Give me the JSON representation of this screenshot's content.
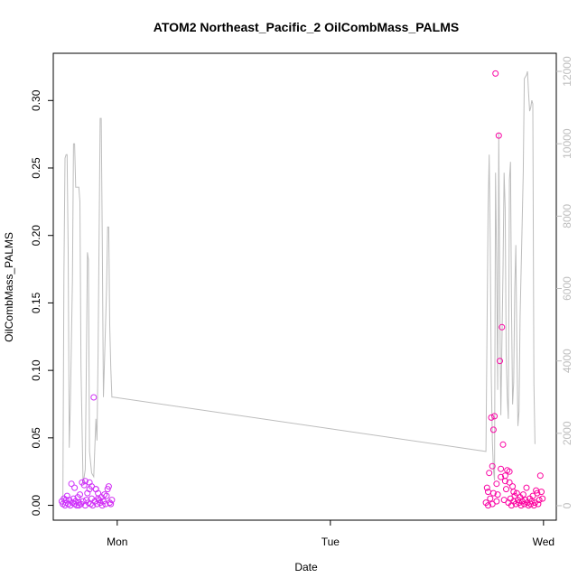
{
  "chart_data": {
    "type": "scatter",
    "title": "ATOM2 Northeast_Pacific_2 OilCombMass_PALMS",
    "xlabel": "Date",
    "ylabel": "OilCombMass_PALMS",
    "x_tick_labels": [
      "Mon",
      "Tue",
      "Wed"
    ],
    "x_tick_values": [
      0,
      1,
      2
    ],
    "x_range": [
      -0.3,
      2.06
    ],
    "y_ticks": [
      "0.00",
      "0.05",
      "0.10",
      "0.15",
      "0.20",
      "0.25",
      "0.30"
    ],
    "y_tick_values": [
      0,
      0.05,
      0.1,
      0.15,
      0.2,
      0.25,
      0.3
    ],
    "ylim": [
      -0.011,
      0.335
    ],
    "y2_ticks": [
      "0",
      "2000",
      "4000",
      "6000",
      "8000",
      "10000",
      "12000"
    ],
    "y2_tick_values": [
      0,
      2000,
      4000,
      6000,
      8000,
      10000,
      12000
    ],
    "y2lim": [
      -400,
      12500
    ],
    "grid": false,
    "series": [
      {
        "role": "points",
        "color_start": "#cc33ff",
        "color_end": "#ff0099",
        "points": [
          [
            -0.26,
            0.003
          ],
          [
            -0.255,
            0.001
          ],
          [
            -0.25,
            0.005
          ],
          [
            -0.245,
            0.0
          ],
          [
            -0.24,
            0.002
          ],
          [
            -0.235,
            0.007
          ],
          [
            -0.23,
            0.001
          ],
          [
            -0.225,
            0.004
          ],
          [
            -0.22,
            0.0
          ],
          [
            -0.215,
            0.016
          ],
          [
            -0.21,
            0.002
          ],
          [
            -0.205,
            0.005
          ],
          [
            -0.2,
            0.001
          ],
          [
            -0.195,
            0.003
          ],
          [
            -0.19,
            0.0
          ],
          [
            -0.185,
            0.006
          ],
          [
            -0.18,
            0.002
          ],
          [
            -0.175,
            0.008
          ],
          [
            -0.17,
            0.001
          ],
          [
            -0.165,
            0.017
          ],
          [
            -0.16,
            0.003
          ],
          [
            -0.155,
            0.015
          ],
          [
            -0.15,
            0.0
          ],
          [
            -0.145,
            0.004
          ],
          [
            -0.14,
            0.009
          ],
          [
            -0.135,
            0.002
          ],
          [
            -0.13,
            0.017
          ],
          [
            -0.125,
            0.001
          ],
          [
            -0.12,
            0.005
          ],
          [
            -0.115,
            0.0
          ],
          [
            -0.11,
            0.08
          ],
          [
            -0.105,
            0.003
          ],
          [
            -0.1,
            0.012
          ],
          [
            -0.095,
            0.001
          ],
          [
            -0.09,
            0.009
          ],
          [
            -0.085,
            0.004
          ],
          [
            -0.08,
            0.002
          ],
          [
            -0.075,
            0.006
          ],
          [
            -0.07,
            0.0
          ],
          [
            -0.065,
            0.003
          ],
          [
            -0.06,
            0.008
          ],
          [
            -0.055,
            0.001
          ],
          [
            -0.05,
            0.007
          ],
          [
            -0.045,
            0.012
          ],
          [
            -0.04,
            0.014
          ],
          [
            -0.035,
            0.002
          ],
          [
            -0.03,
            0.001
          ],
          [
            -0.025,
            0.004
          ],
          [
            -0.1,
            0.012
          ],
          [
            -0.12,
            0.014
          ],
          [
            -0.15,
            0.018
          ],
          [
            -0.2,
            0.013
          ],
          [
            -0.13,
            0.012
          ],
          [
            -0.09,
            0.005
          ],
          [
            -0.24,
            0.004
          ],
          [
            -0.18,
            0.0
          ],
          [
            1.73,
            0.002
          ],
          [
            1.735,
            0.013
          ],
          [
            1.74,
            0.0
          ],
          [
            1.745,
            0.024
          ],
          [
            1.75,
            0.005
          ],
          [
            1.755,
            0.065
          ],
          [
            1.76,
            0.001
          ],
          [
            1.765,
            0.056
          ],
          [
            1.77,
            0.066
          ],
          [
            1.775,
            0.32
          ],
          [
            1.78,
            0.003
          ],
          [
            1.785,
            0.008
          ],
          [
            1.79,
            0.274
          ],
          [
            1.795,
            0.107
          ],
          [
            1.8,
            0.027
          ],
          [
            1.805,
            0.132
          ],
          [
            1.81,
            0.045
          ],
          [
            1.815,
            0.004
          ],
          [
            1.82,
            0.022
          ],
          [
            1.825,
            0.012
          ],
          [
            1.83,
            0.026
          ],
          [
            1.835,
            0.002
          ],
          [
            1.84,
            0.017
          ],
          [
            1.845,
            0.005
          ],
          [
            1.85,
            0.0
          ],
          [
            1.855,
            0.014
          ],
          [
            1.86,
            0.003
          ],
          [
            1.865,
            0.007
          ],
          [
            1.87,
            0.001
          ],
          [
            1.875,
            0.009
          ],
          [
            1.88,
            0.004
          ],
          [
            1.885,
            0.002
          ],
          [
            1.89,
            0.006
          ],
          [
            1.895,
            0.0
          ],
          [
            1.9,
            0.003
          ],
          [
            1.905,
            0.008
          ],
          [
            1.91,
            0.001
          ],
          [
            1.915,
            0.004
          ],
          [
            1.92,
            0.013
          ],
          [
            1.925,
            0.002
          ],
          [
            1.93,
            0.0
          ],
          [
            1.935,
            0.005
          ],
          [
            1.94,
            0.001
          ],
          [
            1.945,
            0.003
          ],
          [
            1.95,
            0.007
          ],
          [
            1.955,
            0.0
          ],
          [
            1.96,
            0.002
          ],
          [
            1.965,
            0.011
          ],
          [
            1.97,
            0.009
          ],
          [
            1.975,
            0.001
          ],
          [
            1.98,
            0.004
          ],
          [
            1.985,
            0.022
          ],
          [
            1.99,
            0.01
          ],
          [
            1.995,
            0.005
          ],
          [
            1.76,
            0.029
          ],
          [
            1.765,
            0.009
          ],
          [
            1.8,
            0.021
          ],
          [
            1.82,
            0.018
          ],
          [
            1.84,
            0.025
          ],
          [
            1.86,
            0.01
          ],
          [
            1.78,
            0.016
          ],
          [
            1.74,
            0.01
          ]
        ]
      },
      {
        "role": "right-axis line",
        "color": "#bdbdbd",
        "points": [
          [
            -0.255,
            0
          ],
          [
            -0.25,
            6400
          ],
          [
            -0.245,
            9600
          ],
          [
            -0.24,
            9700
          ],
          [
            -0.235,
            9700
          ],
          [
            -0.23,
            7000
          ],
          [
            -0.225,
            1600
          ],
          [
            -0.22,
            2800
          ],
          [
            -0.21,
            6200
          ],
          [
            -0.205,
            10000
          ],
          [
            -0.2,
            10000
          ],
          [
            -0.195,
            8800
          ],
          [
            -0.19,
            8800
          ],
          [
            -0.18,
            8800
          ],
          [
            -0.175,
            8400
          ],
          [
            -0.17,
            3800
          ],
          [
            -0.16,
            600
          ],
          [
            -0.15,
            1000
          ],
          [
            -0.145,
            3800
          ],
          [
            -0.14,
            7000
          ],
          [
            -0.135,
            6800
          ],
          [
            -0.13,
            1500
          ],
          [
            -0.12,
            900
          ],
          [
            -0.11,
            800
          ],
          [
            -0.1,
            2400
          ],
          [
            -0.095,
            1800
          ],
          [
            -0.09,
            4200
          ],
          [
            -0.08,
            10700
          ],
          [
            -0.075,
            10700
          ],
          [
            -0.07,
            7200
          ],
          [
            -0.065,
            3000
          ],
          [
            -0.06,
            3900
          ],
          [
            -0.05,
            6000
          ],
          [
            -0.045,
            7700
          ],
          [
            -0.04,
            7700
          ],
          [
            -0.035,
            5000
          ],
          [
            -0.03,
            3800
          ],
          [
            -0.025,
            3000
          ],
          [
            -0.02,
            3000
          ],
          [
            1.73,
            1500
          ],
          [
            1.74,
            8200
          ],
          [
            1.745,
            9700
          ],
          [
            1.75,
            7400
          ],
          [
            1.755,
            3600
          ],
          [
            1.76,
            1800
          ],
          [
            1.765,
            1000
          ],
          [
            1.77,
            700
          ],
          [
            1.775,
            9200
          ],
          [
            1.78,
            6800
          ],
          [
            1.785,
            3200
          ],
          [
            1.79,
            10300
          ],
          [
            1.795,
            5500
          ],
          [
            1.8,
            2500
          ],
          [
            1.81,
            6500
          ],
          [
            1.815,
            9200
          ],
          [
            1.82,
            8200
          ],
          [
            1.825,
            4200
          ],
          [
            1.83,
            3000
          ],
          [
            1.835,
            2400
          ],
          [
            1.84,
            9000
          ],
          [
            1.845,
            9500
          ],
          [
            1.85,
            5500
          ],
          [
            1.855,
            2800
          ],
          [
            1.86,
            3400
          ],
          [
            1.865,
            6000
          ],
          [
            1.87,
            7200
          ],
          [
            1.875,
            4500
          ],
          [
            1.88,
            2200
          ],
          [
            1.885,
            2600
          ],
          [
            1.89,
            5200
          ],
          [
            1.9,
            7800
          ],
          [
            1.905,
            9200
          ],
          [
            1.91,
            11800
          ],
          [
            1.92,
            11900
          ],
          [
            1.925,
            12000
          ],
          [
            1.93,
            11400
          ],
          [
            1.935,
            10900
          ],
          [
            1.94,
            11000
          ],
          [
            1.945,
            11200
          ],
          [
            1.95,
            11100
          ],
          [
            1.955,
            3400
          ],
          [
            1.96,
            1700
          ]
        ]
      }
    ]
  }
}
